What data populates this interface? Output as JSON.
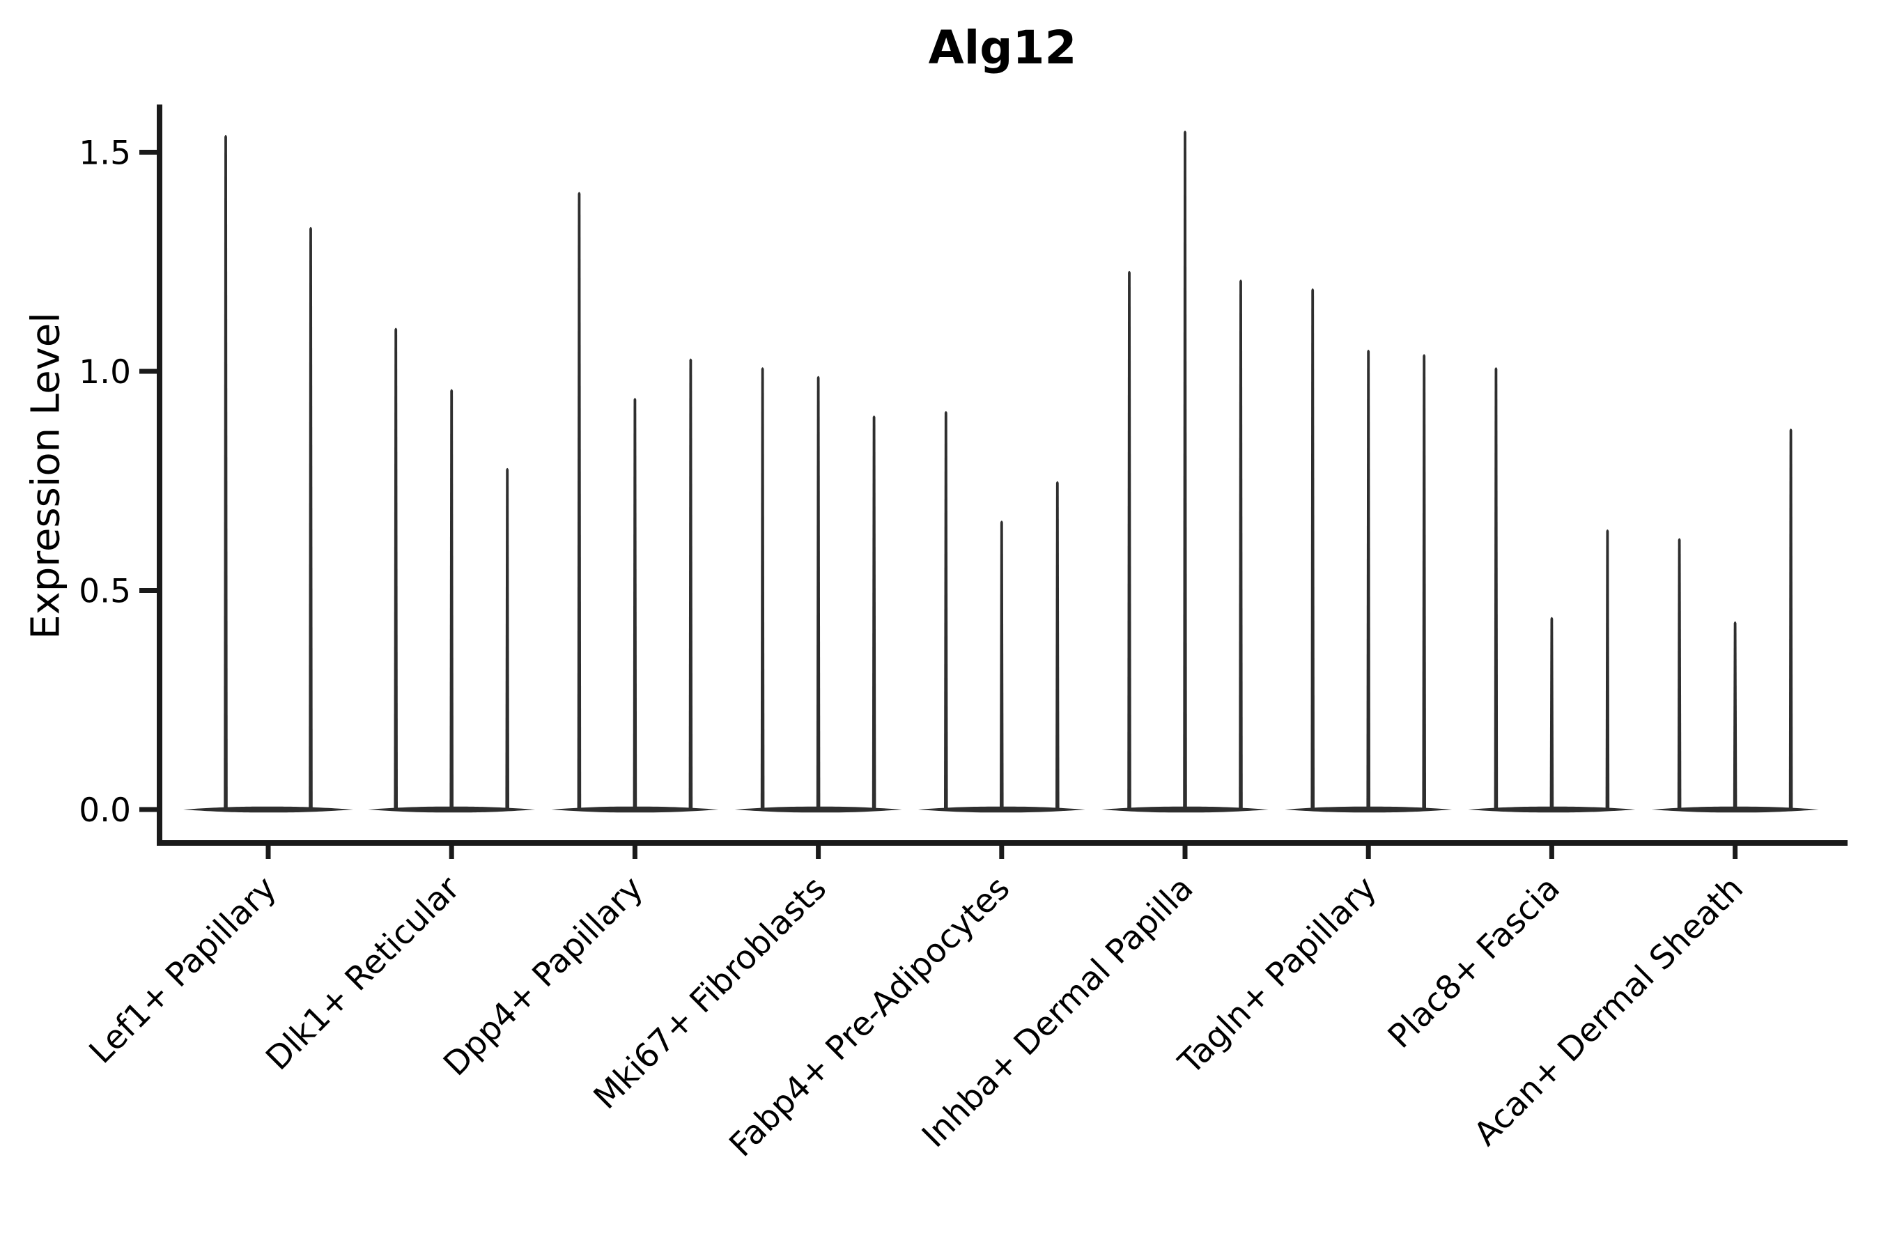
{
  "chart_data": {
    "type": "violin",
    "title": "Alg12",
    "ylabel": "Expression Level",
    "xlabel": "",
    "grid": false,
    "legend": false,
    "ylim": [
      -0.08,
      1.61
    ],
    "yticks": [
      0.0,
      0.5,
      1.0,
      1.5
    ],
    "ytick_labels": [
      "0.0",
      "0.5",
      "1.0",
      "1.5"
    ],
    "categories": [
      "Lef1+ Papillary",
      "Dlk1+ Reticular",
      "Dpp4+ Papillary",
      "Mki67+ Fibroblasts",
      "Fabp4+ Pre-Adipocytes",
      "Inhba+ Dermal Papilla",
      "Tagln+ Papillary",
      "Plac8+ Fascia",
      "Acan+ Dermal Sheath"
    ],
    "series": [
      {
        "category": "Lef1+ Papillary",
        "violin_peaks": [
          1.54,
          1.33
        ]
      },
      {
        "category": "Dlk1+ Reticular",
        "violin_peaks": [
          1.1,
          0.96,
          0.78
        ]
      },
      {
        "category": "Dpp4+ Papillary",
        "violin_peaks": [
          1.41,
          0.94,
          1.03
        ]
      },
      {
        "category": "Mki67+ Fibroblasts",
        "violin_peaks": [
          1.01,
          0.99,
          0.9
        ]
      },
      {
        "category": "Fabp4+ Pre-Adipocytes",
        "violin_peaks": [
          0.91,
          0.66,
          0.75
        ]
      },
      {
        "category": "Inhba+ Dermal Papilla",
        "violin_peaks": [
          1.23,
          1.55,
          1.21
        ]
      },
      {
        "category": "Tagln+ Papillary",
        "violin_peaks": [
          1.19,
          1.05,
          1.04
        ]
      },
      {
        "category": "Plac8+ Fascia",
        "violin_peaks": [
          1.01,
          0.44,
          0.64
        ]
      },
      {
        "category": "Acan+ Dermal Sheath",
        "violin_peaks": [
          0.62,
          0.43,
          0.87
        ]
      }
    ],
    "colors": {
      "violin": "#2e2e2e",
      "axis": "#1a1a1a",
      "text": "#000000",
      "background": "#ffffff"
    }
  }
}
